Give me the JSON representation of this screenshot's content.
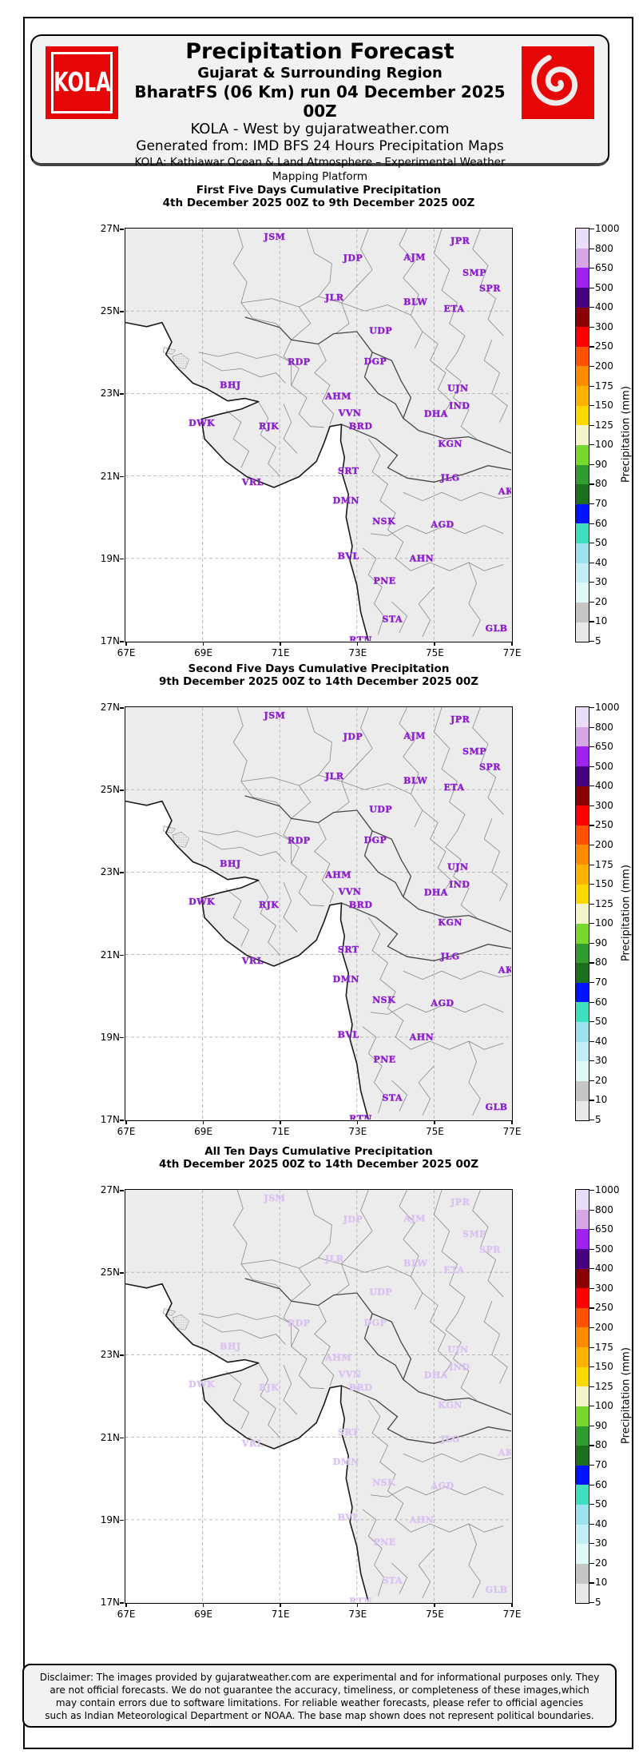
{
  "header": {
    "logo_text": "KOLA",
    "brand_red": "#e60606",
    "title": "Precipitation Forecast",
    "subtitle_region": "Gujarat & Surrounding Region",
    "subtitle_run": "BharatFS (06 Km) run 04 December 2025 00Z",
    "subtitle_brand": "KOLA - West by gujaratweather.com",
    "subtitle_source": "Generated from: IMD BFS 24 Hours Precipitation Maps",
    "subtitle_platform": "KOLA: Kathiawar Ocean & Land Atmosphere – Experimental Weather Mapping Platform"
  },
  "maps": [
    {
      "name": "first-five-days",
      "title_line1": "First Five Days Cumulative Precipitation",
      "title_line2": "4th December 2025 00Z to 9th December 2025 00Z",
      "label_style": "bright"
    },
    {
      "name": "second-five-days",
      "title_line1": "Second Five Days Cumulative Precipitation",
      "title_line2": "9th December 2025 00Z to 14th December 2025 00Z",
      "label_style": "bright"
    },
    {
      "name": "all-ten-days",
      "title_line1": "All Ten Days Cumulative Precipitation",
      "title_line2": "4th December 2025 00Z to 14th December 2025 00Z",
      "label_style": "faded"
    }
  ],
  "map_common": {
    "lon_min": 67,
    "lon_max": 77,
    "lat_min": 17,
    "lat_max": 27,
    "x_tick_labels": [
      "67E",
      "69E",
      "71E",
      "73E",
      "75E",
      "77E"
    ],
    "y_tick_labels": [
      "27N",
      "25N",
      "23N",
      "21N",
      "19N",
      "17N"
    ],
    "land_color": "#ececec",
    "sea_color": "#ffffff",
    "district_label_color": "#8d1fd0",
    "district_label_color_faded": "#d9c3f2",
    "district_labels": [
      {
        "code": "JSM",
        "lat": 26.8,
        "lon": 70.87
      },
      {
        "code": "JDP",
        "lat": 26.28,
        "lon": 72.9
      },
      {
        "code": "AJM",
        "lat": 26.3,
        "lon": 74.5
      },
      {
        "code": "JPR",
        "lat": 26.7,
        "lon": 75.68
      },
      {
        "code": "SMP",
        "lat": 25.92,
        "lon": 76.05
      },
      {
        "code": "SPR",
        "lat": 25.55,
        "lon": 76.45
      },
      {
        "code": "JLR",
        "lat": 25.32,
        "lon": 72.42
      },
      {
        "code": "BLW",
        "lat": 25.22,
        "lon": 74.52
      },
      {
        "code": "ETA",
        "lat": 25.05,
        "lon": 75.52
      },
      {
        "code": "UDP",
        "lat": 24.52,
        "lon": 73.62
      },
      {
        "code": "RDP",
        "lat": 23.76,
        "lon": 71.5
      },
      {
        "code": "DGP",
        "lat": 23.77,
        "lon": 73.48
      },
      {
        "code": "BHJ",
        "lat": 23.2,
        "lon": 69.72
      },
      {
        "code": "AHM",
        "lat": 22.93,
        "lon": 72.52
      },
      {
        "code": "UJN",
        "lat": 23.12,
        "lon": 75.62
      },
      {
        "code": "IND",
        "lat": 22.7,
        "lon": 75.66
      },
      {
        "code": "DHA",
        "lat": 22.5,
        "lon": 75.05
      },
      {
        "code": "VVN",
        "lat": 22.52,
        "lon": 72.82
      },
      {
        "code": "DWK",
        "lat": 22.28,
        "lon": 68.98
      },
      {
        "code": "RJK",
        "lat": 22.2,
        "lon": 70.72
      },
      {
        "code": "BRD",
        "lat": 22.2,
        "lon": 73.1
      },
      {
        "code": "KGN",
        "lat": 21.78,
        "lon": 75.42
      },
      {
        "code": "SRT",
        "lat": 21.12,
        "lon": 72.78
      },
      {
        "code": "JLG",
        "lat": 20.95,
        "lon": 75.42
      },
      {
        "code": "VRL",
        "lat": 20.85,
        "lon": 70.3
      },
      {
        "code": "AKL",
        "lat": 20.62,
        "lon": 76.95
      },
      {
        "code": "DMN",
        "lat": 20.4,
        "lon": 72.72
      },
      {
        "code": "NSK",
        "lat": 19.9,
        "lon": 73.7
      },
      {
        "code": "AGD",
        "lat": 19.82,
        "lon": 75.22
      },
      {
        "code": "BVL",
        "lat": 19.05,
        "lon": 72.78
      },
      {
        "code": "AHN",
        "lat": 19.0,
        "lon": 74.68
      },
      {
        "code": "PNE",
        "lat": 18.45,
        "lon": 73.72
      },
      {
        "code": "STA",
        "lat": 17.52,
        "lon": 73.92
      },
      {
        "code": "GLB",
        "lat": 17.3,
        "lon": 76.62
      },
      {
        "code": "RTN",
        "lat": 17.02,
        "lon": 73.1
      }
    ]
  },
  "colorbar": {
    "title": "Precipitation (mm)",
    "tick_values": [
      5,
      10,
      20,
      30,
      40,
      50,
      60,
      70,
      80,
      90,
      100,
      125,
      150,
      175,
      200,
      250,
      300,
      400,
      500,
      650,
      800,
      1000
    ],
    "band_colors_bottom_to_top": [
      "#e9e9e9",
      "#c6c6c6",
      "#dff9f9",
      "#c3eef6",
      "#9be3ef",
      "#3fdfbf",
      "#0013ff",
      "#1b701b",
      "#2f9e2f",
      "#77d92e",
      "#f6f2cc",
      "#ffd800",
      "#ffb200",
      "#ff8c00",
      "#ff5200",
      "#fe0000",
      "#8b0000",
      "#4a0082",
      "#9f22ef",
      "#d6a6e7",
      "#ebddf7"
    ]
  },
  "footer": {
    "lines": [
      "Disclaimer: The images provided by gujaratweather.com are experimental and for informational purposes only. They",
      "are not official forecasts. We do not guarantee the accuracy, timeliness, or completeness of these images,which",
      "may contain errors due to software limitations. For reliable weather forecasts, please refer to official agencies",
      "such as Indian Meteorological Department or NOAA. The base map shown does not represent political boundaries."
    ]
  }
}
